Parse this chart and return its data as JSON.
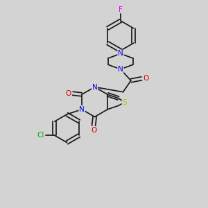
{
  "bg_color": "#d3d3d3",
  "bond_color": "#1a1a1a",
  "atom_colors": {
    "N": "#0000ee",
    "O": "#cc0000",
    "S": "#bbbb00",
    "Cl": "#00aa00",
    "F": "#ee00ee",
    "C": "#1a1a1a"
  },
  "font_size": 7.5,
  "bond_lw": 1.25
}
